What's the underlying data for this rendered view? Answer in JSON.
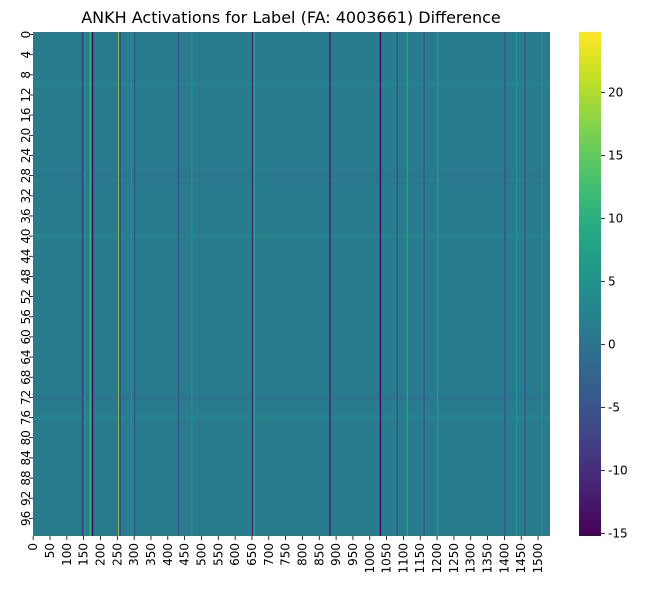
{
  "chart_data": {
    "type": "heatmap",
    "title": "ANKH Activations for Label (FA: 4003661) Difference",
    "xlabel": "",
    "ylabel": "",
    "n_rows": 100,
    "n_cols": 1536,
    "x_tick_labels": [
      "0",
      "50",
      "100",
      "150",
      "200",
      "250",
      "300",
      "350",
      "400",
      "450",
      "500",
      "550",
      "600",
      "650",
      "700",
      "750",
      "800",
      "850",
      "900",
      "950",
      "1000",
      "1050",
      "1100",
      "1150",
      "1200",
      "1250",
      "1300",
      "1350",
      "1400",
      "1450",
      "1500"
    ],
    "y_tick_labels": [
      "0",
      "4",
      "8",
      "12",
      "16",
      "20",
      "24",
      "28",
      "32",
      "36",
      "40",
      "44",
      "48",
      "52",
      "56",
      "60",
      "64",
      "68",
      "72",
      "76",
      "80",
      "84",
      "88",
      "92",
      "96"
    ],
    "colorbar": {
      "vmin": -15.2,
      "vmax": 24.8,
      "ticks": [
        -15,
        -10,
        -5,
        0,
        5,
        10,
        15,
        20
      ],
      "colormap": "viridis"
    },
    "baseline_value": 1.5,
    "column_stripes": [
      {
        "col": 145,
        "value": -7
      },
      {
        "col": 148,
        "value": -5
      },
      {
        "col": 152,
        "value": 6
      },
      {
        "col": 168,
        "value": 11
      },
      {
        "col": 175,
        "value": -13
      },
      {
        "col": 254,
        "value": 22
      },
      {
        "col": 256,
        "value": -9
      },
      {
        "col": 290,
        "value": 5
      },
      {
        "col": 300,
        "value": -4
      },
      {
        "col": 430,
        "value": -5
      },
      {
        "col": 470,
        "value": 4
      },
      {
        "col": 650,
        "value": -11
      },
      {
        "col": 655,
        "value": 9
      },
      {
        "col": 880,
        "value": -12
      },
      {
        "col": 1030,
        "value": -14
      },
      {
        "col": 1080,
        "value": -5
      },
      {
        "col": 1110,
        "value": 8
      },
      {
        "col": 1160,
        "value": -4
      },
      {
        "col": 1200,
        "value": 6
      },
      {
        "col": 1400,
        "value": -5
      },
      {
        "col": 1435,
        "value": 5
      },
      {
        "col": 1460,
        "value": -4
      },
      {
        "col": 1510,
        "value": 4
      }
    ],
    "row_bands": [
      {
        "row": 10,
        "offset": 1.5
      },
      {
        "row": 28,
        "offset": -2
      },
      {
        "row": 40,
        "offset": 2
      },
      {
        "row": 72,
        "offset": -2
      },
      {
        "row": 76,
        "offset": 1.5
      }
    ]
  }
}
